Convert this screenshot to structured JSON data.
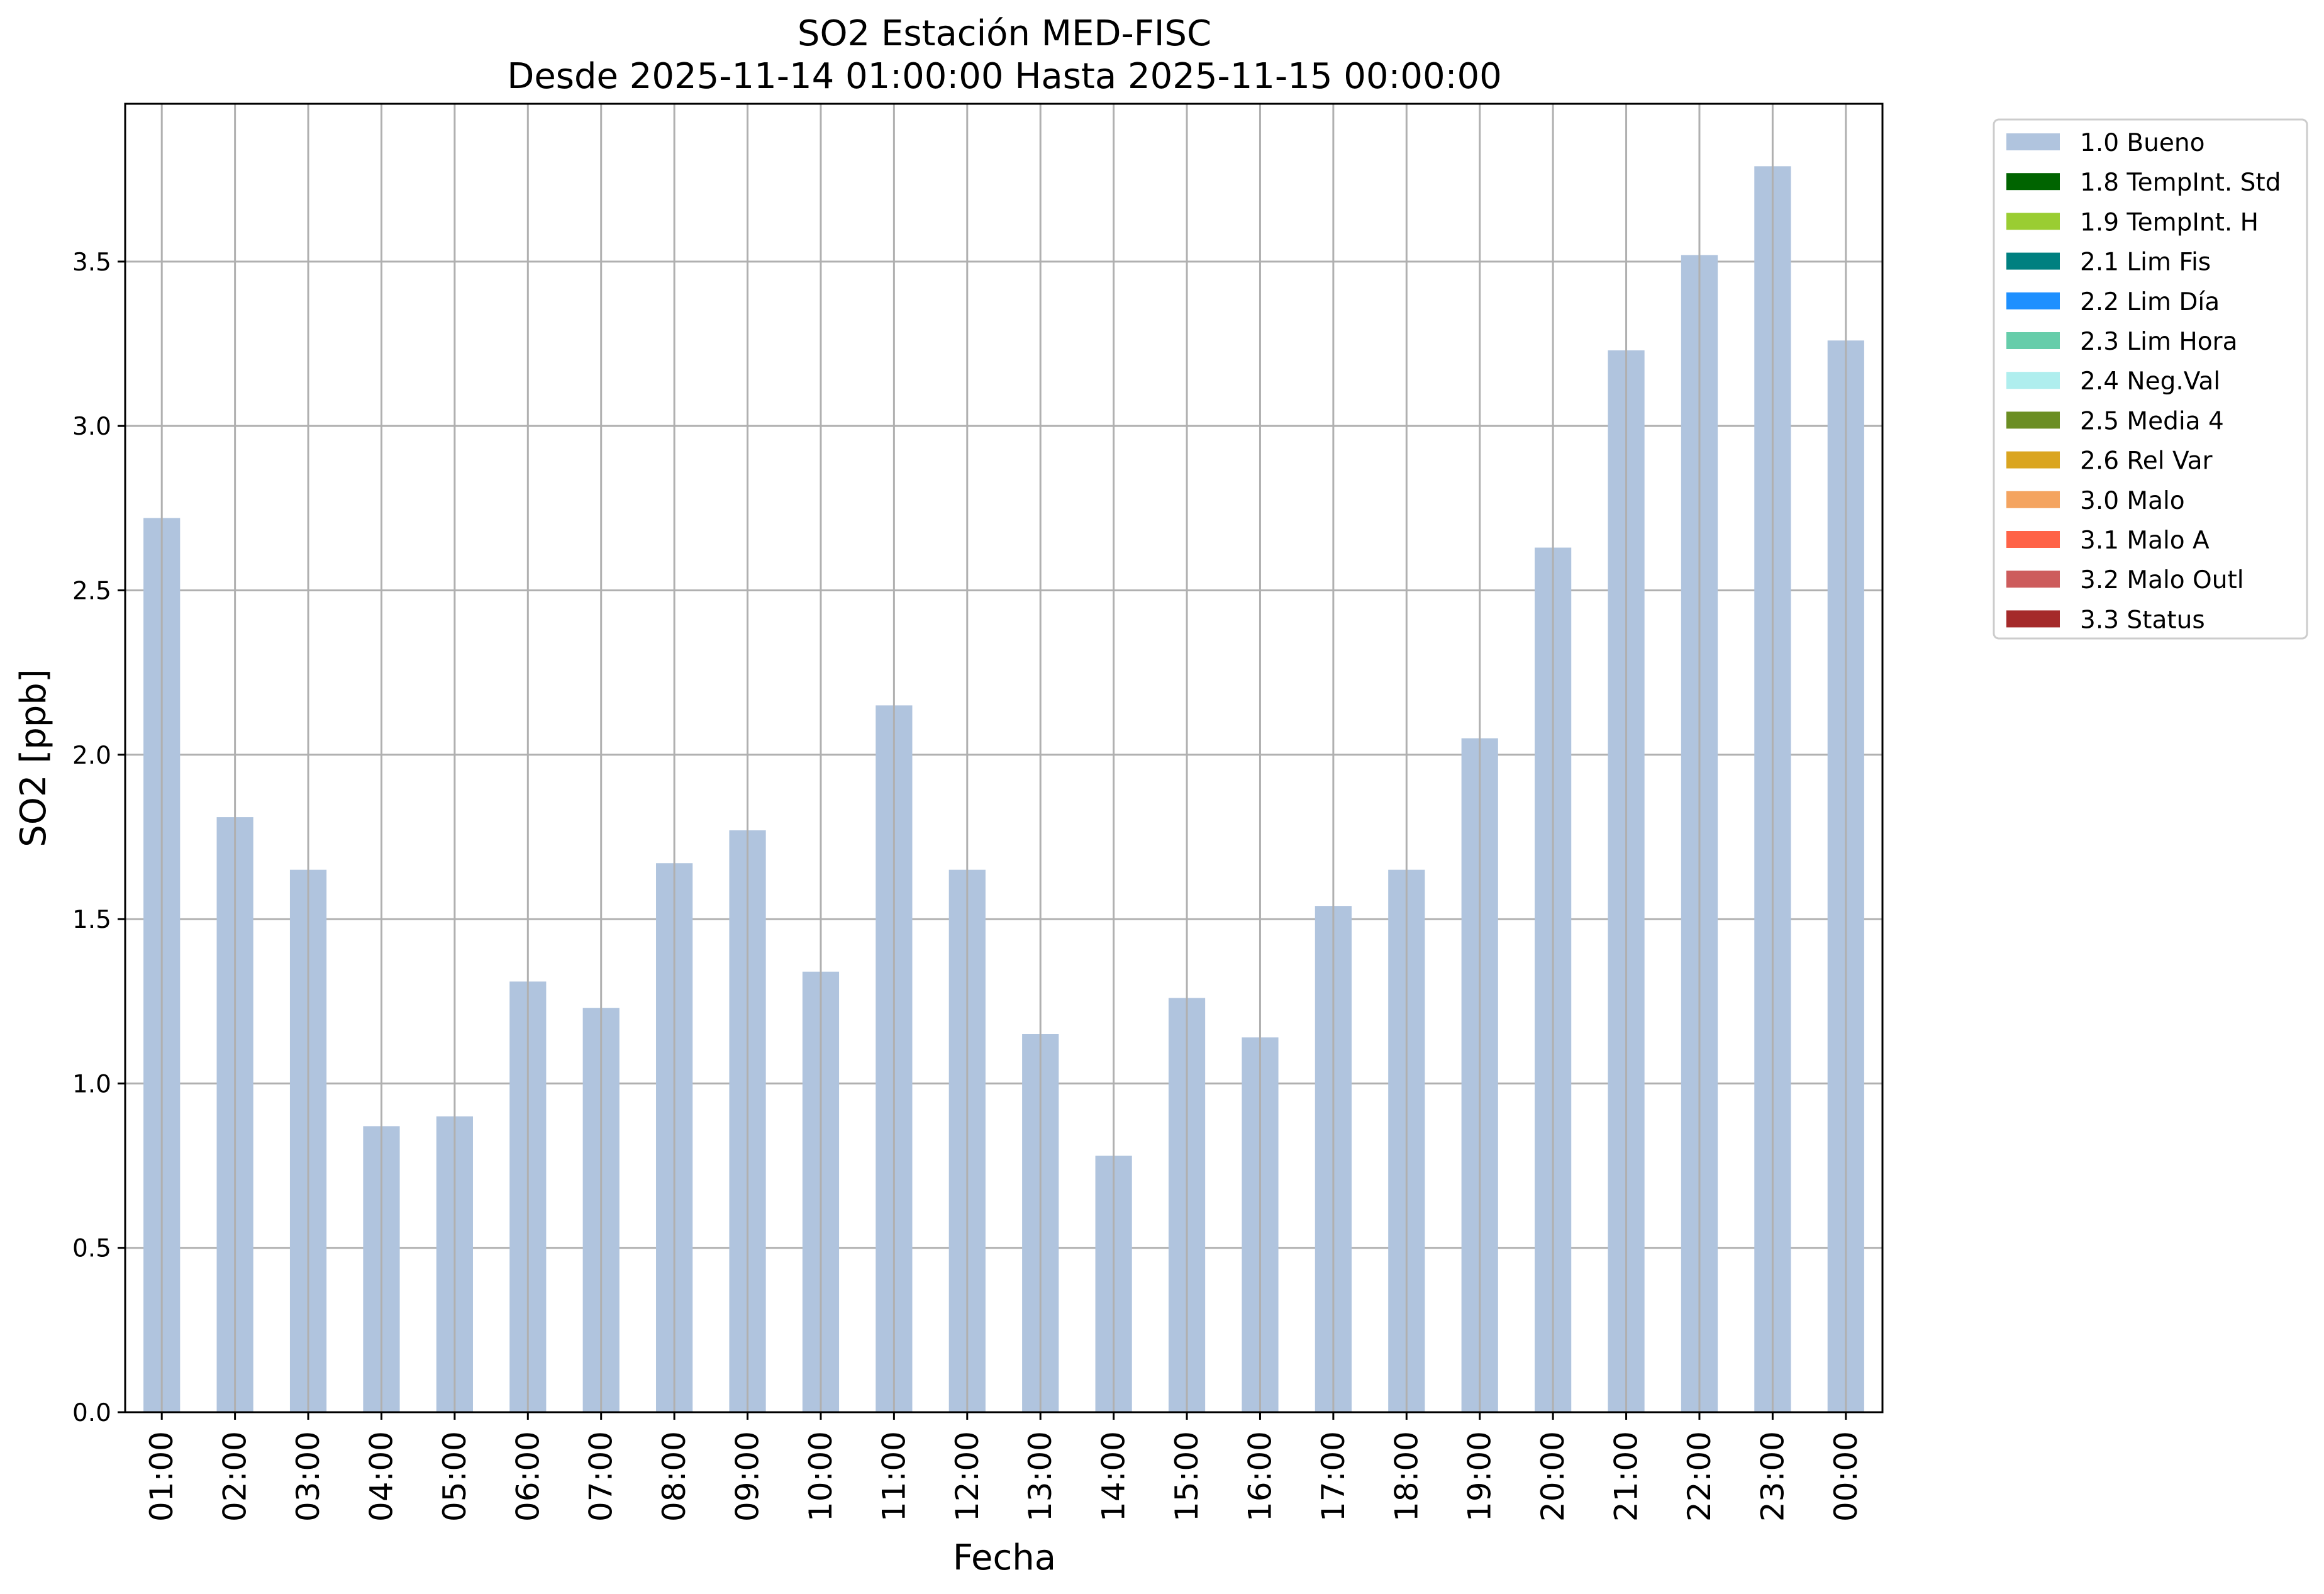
{
  "chart_data": {
    "type": "bar",
    "title": "SO2 Estación MED-FISC",
    "subtitle": "Desde 2025-11-14 01:00:00 Hasta 2025-11-15 00:00:00",
    "xlabel": "Fecha",
    "ylabel": "SO2 [ppb]",
    "categories": [
      "01:00",
      "02:00",
      "03:00",
      "04:00",
      "05:00",
      "06:00",
      "07:00",
      "08:00",
      "09:00",
      "10:00",
      "11:00",
      "12:00",
      "13:00",
      "14:00",
      "15:00",
      "16:00",
      "17:00",
      "18:00",
      "19:00",
      "20:00",
      "21:00",
      "22:00",
      "23:00",
      "00:00"
    ],
    "series": [
      {
        "name": "1.0 Bueno",
        "color": "#b0c4de",
        "values": [
          2.72,
          1.81,
          1.65,
          0.87,
          0.9,
          1.31,
          1.23,
          1.67,
          1.77,
          1.34,
          2.15,
          1.65,
          1.15,
          0.78,
          1.26,
          1.14,
          1.54,
          1.65,
          2.05,
          2.63,
          3.23,
          3.52,
          3.79,
          3.26
        ]
      }
    ],
    "ylim": [
      0,
      3.98
    ],
    "yticks": [
      "0.0",
      "0.5",
      "1.0",
      "1.5",
      "2.0",
      "2.5",
      "3.0",
      "3.5"
    ],
    "grid": true,
    "legend_position": "outside-top-right",
    "legend": [
      {
        "label": "1.0 Bueno",
        "color": "#b0c4de"
      },
      {
        "label": "1.8 TempInt. Std",
        "color": "#006400"
      },
      {
        "label": "1.9 TempInt. H",
        "color": "#9acd32"
      },
      {
        "label": "2.1 Lim Fis",
        "color": "#008080"
      },
      {
        "label": "2.2 Lim Día",
        "color": "#1e90ff"
      },
      {
        "label": "2.3 Lim Hora",
        "color": "#66cdaa"
      },
      {
        "label": "2.4 Neg.Val",
        "color": "#afeeee"
      },
      {
        "label": "2.5 Media 4",
        "color": "#6b8e23"
      },
      {
        "label": "2.6 Rel Var",
        "color": "#daa520"
      },
      {
        "label": "3.0 Malo",
        "color": "#f4a460"
      },
      {
        "label": "3.1 Malo A",
        "color": "#ff6347"
      },
      {
        "label": "3.2 Malo Outl",
        "color": "#cd5c5c"
      },
      {
        "label": "3.3 Status",
        "color": "#a52a2a"
      }
    ]
  }
}
